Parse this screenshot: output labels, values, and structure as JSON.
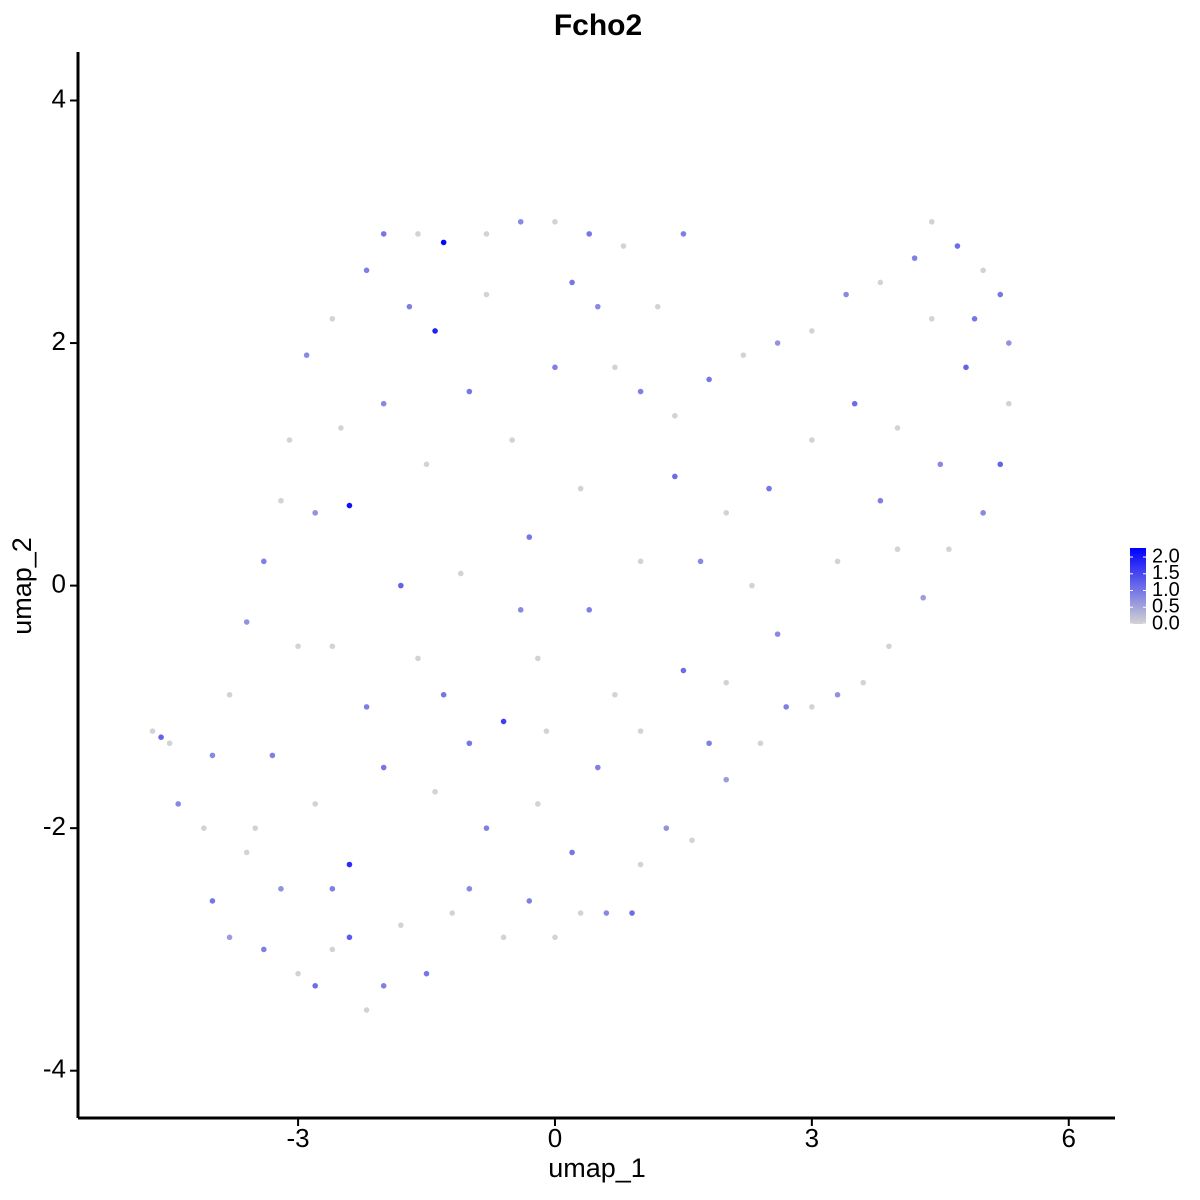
{
  "chart_data": {
    "type": "scatter",
    "title": "Fcho2",
    "x_label": "umap_1",
    "y_label": "umap_2",
    "xlim": [
      -5.57,
      6.54
    ],
    "ylim": [
      -4.39,
      4.4
    ],
    "xticks": [
      -3,
      0,
      3,
      6
    ],
    "yticks": [
      -4,
      -2,
      0,
      2,
      4
    ],
    "color_low": "#d3d3d3",
    "color_high": "#0000ff",
    "color_lim": [
      0,
      2.27
    ],
    "color_ticks": [
      {
        "value": 0,
        "label": "0.0"
      },
      {
        "value": 0.5,
        "label": "0.5"
      },
      {
        "value": 1,
        "label": "1.0"
      },
      {
        "value": 1.5,
        "label": "1.5"
      },
      {
        "value": 2,
        "label": "2.0"
      }
    ],
    "x": [
      -4.7,
      -4.6,
      -4.4,
      -4.1,
      -4.0,
      -3.8,
      -3.6,
      -3.4,
      -3.2,
      -3.0,
      -2.8,
      -2.6,
      -2.4,
      -2.2,
      -2.0,
      -1.8,
      -1.5,
      -1.2,
      -1.0,
      -0.6,
      -0.3,
      0.0,
      0.3,
      0.6,
      0.9,
      1.0,
      1.3,
      1.6,
      2.0,
      2.4,
      2.7,
      3.0,
      3.3,
      3.6,
      3.9,
      4.3,
      4.6,
      5.0,
      5.2,
      5.3,
      5.3,
      5.2,
      5.0,
      4.7,
      4.4,
      4.2,
      3.8,
      3.4,
      3.0,
      2.6,
      2.2,
      1.8,
      1.4,
      1.0,
      0.7,
      0.5,
      0.8,
      0.4,
      0.0,
      -0.4,
      -0.8,
      -1.3,
      -1.6,
      -2.0,
      -2.2,
      -2.6,
      -2.9,
      -3.1,
      -3.2,
      -3.4,
      -3.6,
      -3.8,
      -4.0,
      -1.4,
      -2.4,
      -2.4,
      -0.6,
      -2.0,
      -1.5,
      -1.0,
      -0.5,
      0.0,
      0.3,
      -0.3,
      -1.1,
      -1.8,
      -2.6,
      -2.2,
      -1.6,
      -1.0,
      -0.2,
      0.4,
      1.0,
      1.4,
      2.0,
      2.5,
      3.0,
      3.5,
      4.0,
      4.5,
      4.8,
      4.4,
      3.8,
      3.3,
      2.6,
      2.0,
      1.5,
      1.0,
      0.5,
      -0.2,
      -0.8,
      -1.4,
      -2.0,
      -2.8,
      -3.3,
      -3.0,
      -2.8,
      -2.5,
      -1.7,
      -0.8,
      0.2,
      1.2,
      1.7,
      2.3,
      0.7,
      -0.4,
      -1.3,
      -3.5,
      -2.6,
      0.2,
      -0.1,
      1.8,
      4.0,
      4.9,
      1.5,
      -4.5
    ],
    "y": [
      -1.2,
      -1.25,
      -1.8,
      -2.0,
      -2.6,
      -2.9,
      -2.2,
      -3.0,
      -2.5,
      -3.2,
      -3.3,
      -3.0,
      -2.9,
      -3.5,
      -3.3,
      -2.8,
      -3.2,
      -2.7,
      -2.5,
      -2.9,
      -2.6,
      -2.9,
      -2.7,
      -2.7,
      -2.7,
      -2.3,
      -2.0,
      -2.1,
      -1.6,
      -1.3,
      -1.0,
      -1.0,
      -0.9,
      -0.8,
      -0.5,
      -0.1,
      0.3,
      0.6,
      1.0,
      1.5,
      2.0,
      2.4,
      2.6,
      2.8,
      3.0,
      2.7,
      2.5,
      2.4,
      2.1,
      2.0,
      1.9,
      1.7,
      1.4,
      1.6,
      1.8,
      2.3,
      2.8,
      2.9,
      3.0,
      3.0,
      2.9,
      2.83,
      2.9,
      2.9,
      2.6,
      2.2,
      1.9,
      1.2,
      0.7,
      0.2,
      -0.3,
      -0.9,
      -1.4,
      2.1,
      0.66,
      -2.3,
      -1.12,
      1.5,
      1.0,
      1.6,
      1.2,
      1.8,
      0.8,
      0.4,
      0.1,
      0.0,
      -0.5,
      -1.0,
      -0.6,
      -1.3,
      -0.6,
      -0.2,
      0.2,
      0.9,
      0.6,
      0.8,
      1.2,
      1.5,
      1.3,
      1.0,
      1.8,
      2.2,
      0.7,
      0.2,
      -0.4,
      -0.8,
      -0.7,
      -1.2,
      -1.5,
      -1.8,
      -2.0,
      -1.7,
      -1.5,
      -1.8,
      -1.4,
      -0.5,
      0.6,
      1.3,
      2.3,
      2.4,
      2.5,
      2.3,
      0.2,
      0.0,
      -0.9,
      -0.2,
      -0.9,
      -2.0,
      -2.5,
      -2.2,
      -1.2,
      -1.3,
      0.3,
      2.2,
      2.9,
      -1.3
    ],
    "values": [
      0,
      1.2,
      0.8,
      0,
      1.0,
      0.6,
      0,
      0.9,
      0.7,
      0,
      1.1,
      0,
      1.3,
      0,
      0.9,
      0,
      1.0,
      0,
      0.8,
      0,
      0.9,
      0,
      0,
      0.8,
      1.1,
      0,
      0.7,
      0,
      0.6,
      0,
      0.9,
      0,
      0.7,
      0,
      0,
      0.6,
      0,
      0.8,
      1.2,
      0,
      0.7,
      1.0,
      0,
      1.1,
      0,
      0.9,
      0,
      0.8,
      0,
      0.7,
      0,
      1.0,
      0,
      0.9,
      0,
      0.8,
      0,
      1.0,
      0,
      0.8,
      0,
      2.2,
      0,
      1.0,
      0.9,
      0,
      0.8,
      0,
      0,
      0.9,
      0.7,
      0,
      0.8,
      1.9,
      2.1,
      1.8,
      1.6,
      0.8,
      0,
      1.0,
      0,
      0.9,
      0,
      1.0,
      0,
      1.2,
      0,
      0.9,
      0,
      1.0,
      0,
      0.9,
      0,
      1.1,
      0,
      1.0,
      0,
      1.1,
      0,
      0.8,
      1.2,
      0,
      0.9,
      0,
      0.8,
      0,
      1.1,
      0,
      0.9,
      0,
      0.9,
      0,
      1.0,
      0,
      0.9,
      0,
      0.7,
      0,
      0.9,
      0,
      1.0,
      0,
      0.8,
      0,
      0,
      0.8,
      1.0,
      0,
      0.9,
      1.0,
      0,
      0.9,
      0,
      1.0,
      0.9,
      0
    ]
  }
}
